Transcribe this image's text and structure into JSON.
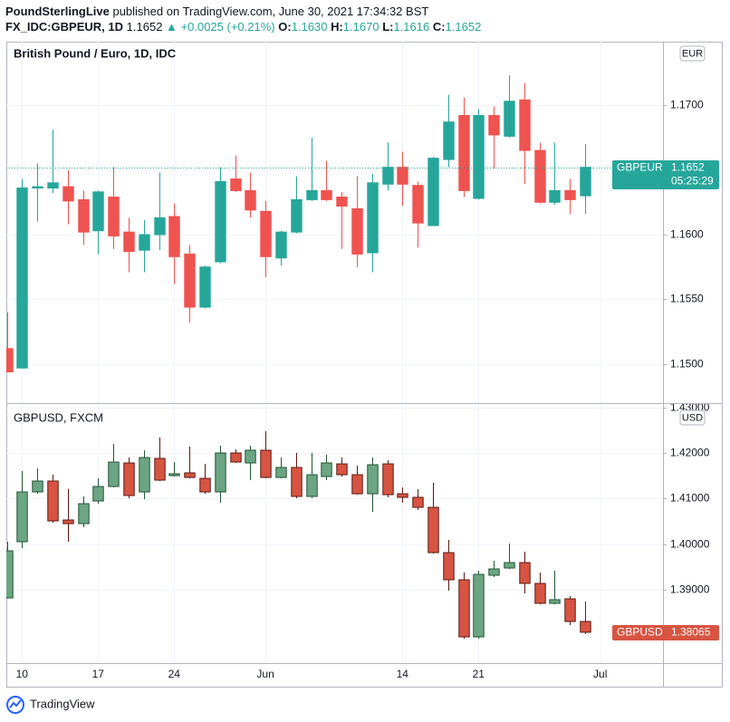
{
  "header": {
    "author": "PoundSterlingLive",
    "published": "published on TradingView.com, June 30, 2021 17:34:32 BST",
    "symbol": "FX_IDC:GBPEUR, 1D",
    "last": "1.1652",
    "change": "▲ +0.0025 (+0.21%)",
    "ohlc": [
      {
        "label": "O:",
        "value": "1.1630"
      },
      {
        "label": "H:",
        "value": "1.1670"
      },
      {
        "label": "L:",
        "value": "1.1616"
      },
      {
        "label": "C:",
        "value": "1.1652"
      }
    ]
  },
  "chart_data": [
    {
      "type": "candlestick",
      "title": "British Pound / Euro, 1D, IDC",
      "currency": "EUR",
      "symbol": "GBPEUR",
      "last": {
        "value": 1.1652,
        "label": "1.1652"
      },
      "countdown": "05:25:29",
      "price_line": true,
      "up_color": "#26a69a",
      "down_color": "#ef5350",
      "grid": true,
      "xlim": [
        -0.03,
        43.125
      ],
      "ylim": [
        1.14699,
        1.1749
      ],
      "yticks": [
        {
          "value": 1.17,
          "label": "1.1700"
        },
        {
          "value": 1.16,
          "label": "1.1600"
        },
        {
          "value": 1.155,
          "label": "1.1550"
        },
        {
          "value": 1.15,
          "label": "1.1500"
        }
      ],
      "open": [
        1.1512,
        1.1497,
        1.1636,
        1.1636,
        1.1637,
        1.1627,
        1.1603,
        1.1629,
        1.1602,
        1.1588,
        1.16,
        1.1614,
        1.1585,
        1.1544,
        1.1579,
        1.1643,
        1.1634,
        1.1618,
        1.1582,
        1.1602,
        1.1627,
        1.1634,
        1.1629,
        1.162,
        1.1586,
        1.1639,
        1.1652,
        1.1638,
        1.1607,
        1.1658,
        1.1692,
        1.1628,
        1.1692,
        1.1676,
        1.1704,
        1.1665,
        1.1625,
        1.1634,
        1.163
      ],
      "high": [
        1.154,
        1.1643,
        1.1655,
        1.1681,
        1.165,
        1.1634,
        1.1634,
        1.1652,
        1.1613,
        1.1611,
        1.1648,
        1.1624,
        1.1592,
        1.1576,
        1.1652,
        1.1661,
        1.1648,
        1.1626,
        1.1603,
        1.1645,
        1.1675,
        1.1657,
        1.1633,
        1.1645,
        1.1647,
        1.1671,
        1.1664,
        1.1641,
        1.166,
        1.1708,
        1.1706,
        1.1697,
        1.1699,
        1.1723,
        1.1717,
        1.1671,
        1.1671,
        1.1643,
        1.167
      ],
      "low": [
        1.1494,
        1.1497,
        1.161,
        1.1632,
        1.1608,
        1.1592,
        1.1585,
        1.1589,
        1.1571,
        1.1571,
        1.1588,
        1.1562,
        1.1532,
        1.1543,
        1.1578,
        1.1633,
        1.1613,
        1.1567,
        1.1576,
        1.1601,
        1.1626,
        1.1626,
        1.1589,
        1.1575,
        1.1571,
        1.1634,
        1.1622,
        1.159,
        1.1607,
        1.1652,
        1.1629,
        1.1627,
        1.1651,
        1.1675,
        1.1639,
        1.1624,
        1.1623,
        1.1616,
        1.1616
      ],
      "close": [
        1.1494,
        1.1636,
        1.1637,
        1.164,
        1.1626,
        1.1602,
        1.1633,
        1.1599,
        1.1587,
        1.16,
        1.1613,
        1.1583,
        1.1544,
        1.1575,
        1.1641,
        1.1634,
        1.1619,
        1.1583,
        1.1602,
        1.1627,
        1.1634,
        1.1627,
        1.1622,
        1.1585,
        1.164,
        1.1652,
        1.1639,
        1.1609,
        1.1659,
        1.1687,
        1.1634,
        1.1692,
        1.1677,
        1.1703,
        1.1665,
        1.1625,
        1.1634,
        1.1627,
        1.1652
      ]
    },
    {
      "type": "candlestick",
      "title": "GBPUSD, FXCM",
      "currency": "USD",
      "symbol": "GBPUSD",
      "last": {
        "value": 1.38065,
        "label": "1.38065"
      },
      "price_line": false,
      "up_color": "#6ba583",
      "down_color": "#d75442",
      "border_up": "#225437",
      "border_down": "#5b1a13",
      "grid": true,
      "xlim": [
        -0.03,
        43.125
      ],
      "ylim": [
        1.37388,
        1.43074
      ],
      "yticks": [
        {
          "value": 1.43,
          "label": "1.43000"
        },
        {
          "value": 1.42,
          "label": "1.42000"
        },
        {
          "value": 1.41,
          "label": "1.41000"
        },
        {
          "value": 1.4,
          "label": "1.40000"
        },
        {
          "value": 1.39,
          "label": "1.39000"
        }
      ],
      "xticks": [
        {
          "value": 1,
          "label": "10"
        },
        {
          "value": 6,
          "label": "17"
        },
        {
          "value": 11,
          "label": "24"
        },
        {
          "value": 17,
          "label": "Jun"
        },
        {
          "value": 26,
          "label": "14"
        },
        {
          "value": 31,
          "label": "21"
        },
        {
          "value": 39,
          "label": "Jul"
        }
      ],
      "open": [
        1.38819,
        1.40052,
        1.41145,
        1.41384,
        1.40529,
        1.40449,
        1.40946,
        1.41264,
        1.41781,
        1.41145,
        1.41881,
        1.41503,
        1.41563,
        1.41443,
        1.41145,
        1.42,
        1.41781,
        1.4206,
        1.41463,
        1.41682,
        1.41046,
        1.41483,
        1.41761,
        1.41523,
        1.41105,
        1.41761,
        1.41105,
        1.41026,
        1.40807,
        1.39813,
        1.39217,
        1.37964,
        1.39316,
        1.39475,
        1.39594,
        1.39137,
        1.387,
        1.38799,
        1.38302
      ],
      "high": [
        1.40052,
        1.41602,
        1.41662,
        1.41523,
        1.41213,
        1.41046,
        1.41443,
        1.42199,
        1.419,
        1.4206,
        1.42338,
        1.41801,
        1.42139,
        1.41761,
        1.42159,
        1.4208,
        1.42159,
        1.42477,
        1.419,
        1.42,
        1.42,
        1.4196,
        1.419,
        1.41722,
        1.419,
        1.41841,
        1.41245,
        1.41205,
        1.41344,
        1.40091,
        1.39376,
        1.39416,
        1.39634,
        1.40012,
        1.39833,
        1.39376,
        1.39416,
        1.38859,
        1.3874
      ],
      "low": [
        1.38819,
        1.39913,
        1.41105,
        1.40469,
        1.40052,
        1.4037,
        1.40887,
        1.41245,
        1.41006,
        1.40986,
        1.41384,
        1.41483,
        1.41443,
        1.41105,
        1.40907,
        1.41781,
        1.41404,
        1.41443,
        1.41443,
        1.41006,
        1.41006,
        1.41404,
        1.41483,
        1.41085,
        1.40708,
        1.41026,
        1.40907,
        1.40748,
        1.39793,
        1.38978,
        1.37924,
        1.37924,
        1.39276,
        1.39455,
        1.38918,
        1.3868,
        1.3868,
        1.38223,
        1.38024
      ],
      "close": [
        1.39853,
        1.41145,
        1.41384,
        1.40509,
        1.40449,
        1.40887,
        1.41264,
        1.41801,
        1.41066,
        1.419,
        1.41404,
        1.41543,
        1.41463,
        1.41145,
        1.42,
        1.41801,
        1.4206,
        1.41463,
        1.41682,
        1.41046,
        1.41523,
        1.41781,
        1.41523,
        1.41105,
        1.41742,
        1.41085,
        1.41026,
        1.40807,
        1.39813,
        1.39217,
        1.37964,
        1.39336,
        1.39455,
        1.39594,
        1.39137,
        1.387,
        1.3878,
        1.38302,
        1.38065
      ]
    }
  ],
  "footer": "TradingView"
}
